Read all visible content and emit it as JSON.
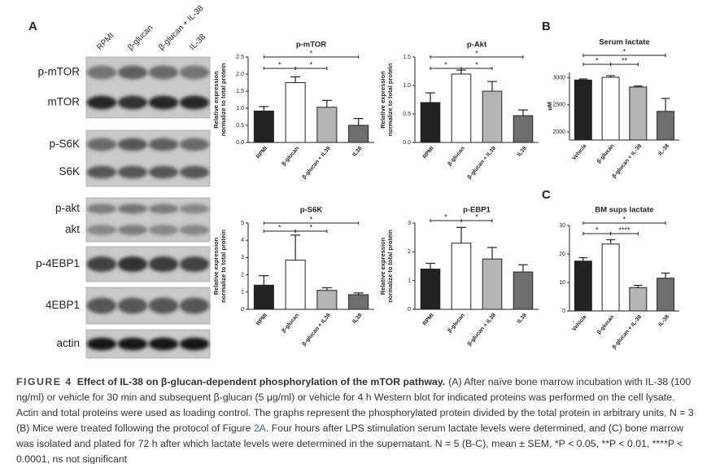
{
  "panel_labels": [
    "A",
    "B",
    "C"
  ],
  "blot": {
    "columns": [
      "RPMI",
      "β-glucan",
      "β-glucan + IL-38",
      "IL-38"
    ],
    "rows": [
      "p-mTOR",
      "mTOR",
      "p-S6K",
      "S6K",
      "p-akt",
      "akt",
      "p-4EBP1",
      "4EBP1",
      "actin"
    ]
  },
  "chart_data": [
    {
      "type": "bar",
      "title": "p-mTOR",
      "ylabel": [
        "Relative expression",
        "normalize to total protein"
      ],
      "categories": [
        "RPMI",
        "β-glucan",
        "β-glucan + IL38",
        "IL38"
      ],
      "values": [
        0.92,
        1.75,
        1.03,
        0.5
      ],
      "errors": [
        0.13,
        0.17,
        0.2,
        0.2
      ],
      "colors": [
        "#222222",
        "#ffffff",
        "#b4b4b4",
        "#6e6e6e"
      ],
      "ylim": [
        0,
        2.5
      ],
      "yticks": [
        {
          "value": 0,
          "label": "0.0"
        },
        0.5,
        {
          "value": 1,
          "label": "1.0"
        },
        1.5,
        {
          "value": 2,
          "label": "2.0"
        },
        2.5
      ],
      "annotations": [
        {
          "text": "*",
          "from": "RPMI",
          "to": "β-glucan"
        },
        {
          "text": "*",
          "from": "β-glucan",
          "to": "β-glucan + IL38"
        },
        {
          "text": "*",
          "from": "RPMI",
          "to": "IL38"
        }
      ]
    },
    {
      "type": "bar",
      "title": "p-Akt",
      "ylabel": [
        "Relative expression",
        "normalize to total protein"
      ],
      "categories": [
        "RPMI",
        "β-glucan",
        "β-glucan + IL38",
        "IL38"
      ],
      "values": [
        0.7,
        1.2,
        0.9,
        0.47
      ],
      "errors": [
        0.17,
        0.07,
        0.17,
        0.1
      ],
      "colors": [
        "#222222",
        "#ffffff",
        "#b4b4b4",
        "#6e6e6e"
      ],
      "ylim": [
        0,
        1.5
      ],
      "yticks": [
        {
          "value": 0,
          "label": "0.0"
        },
        0.5,
        {
          "value": 1,
          "label": "1.0"
        },
        1.5
      ],
      "annotations": [
        {
          "text": "*",
          "from": "RPMI",
          "to": "β-glucan"
        },
        {
          "text": "*",
          "from": "β-glucan",
          "to": "β-glucan + IL38"
        },
        {
          "text": "*",
          "from": "RPMI",
          "to": "IL38"
        }
      ]
    },
    {
      "type": "bar",
      "title": "p-S6K",
      "ylabel": [
        "Relative expression",
        "normalize to total protein"
      ],
      "categories": [
        "RPMI",
        "β-glucan",
        "β-glucan + IL38",
        "IL38"
      ],
      "values": [
        1.4,
        2.85,
        1.1,
        0.85
      ],
      "errors": [
        0.55,
        1.45,
        0.15,
        0.1
      ],
      "colors": [
        "#222222",
        "#ffffff",
        "#b4b4b4",
        "#6e6e6e"
      ],
      "ylim": [
        0,
        5
      ],
      "yticks": [
        0,
        1,
        2,
        3,
        4,
        5
      ],
      "annotations": [
        {
          "text": "*",
          "from": "RPMI",
          "to": "β-glucan"
        },
        {
          "text": "*",
          "from": "β-glucan",
          "to": "β-glucan + IL38"
        },
        {
          "text": "*",
          "from": "RPMI",
          "to": "IL38"
        }
      ]
    },
    {
      "type": "bar",
      "title": "p-EBP1",
      "ylabel": [
        "Relative expression",
        "normalize to total protein"
      ],
      "categories": [
        "RPMI",
        "β-glucan",
        "β-glucan + IL38",
        "IL38"
      ],
      "values": [
        1.4,
        2.3,
        1.75,
        1.3
      ],
      "errors": [
        0.2,
        0.55,
        0.4,
        0.25
      ],
      "colors": [
        "#222222",
        "#ffffff",
        "#b4b4b4",
        "#6e6e6e"
      ],
      "ylim": [
        0,
        3
      ],
      "yticks": [
        0,
        1,
        2,
        3
      ],
      "annotations": [
        {
          "text": "*",
          "from": "RPMI",
          "to": "β-glucan"
        },
        {
          "text": "*",
          "from": "β-glucan",
          "to": "β-glucan + IL38"
        }
      ]
    },
    {
      "type": "bar",
      "title": "Serum lactate",
      "ylabel": [
        "uM"
      ],
      "categories": [
        "Vehicle",
        "β-glucan",
        "β-glucan + IL-38",
        "IL-38"
      ],
      "values": [
        2960,
        3010,
        2830,
        2380
      ],
      "errors": [
        20,
        30,
        20,
        240
      ],
      "colors": [
        "#222222",
        "#ffffff",
        "#b4b4b4",
        "#6e6e6e"
      ],
      "ylim": [
        1850,
        3100
      ],
      "yticks": [
        2000,
        2500,
        3000
      ],
      "annotations": [
        {
          "text": "*",
          "from": "Vehicle",
          "to": "β-glucan"
        },
        {
          "text": "**",
          "from": "β-glucan",
          "to": "β-glucan + IL-38"
        },
        {
          "text": "*",
          "from": "Vehicle",
          "to": "IL-38"
        }
      ]
    },
    {
      "type": "bar",
      "title": "BM sups lactate",
      "ylabel": [],
      "categories": [
        "Vehicle",
        "β-glucan",
        "β-glucan + IL-38",
        "IL-38"
      ],
      "values": [
        17.5,
        23.5,
        8.2,
        11.5
      ],
      "errors": [
        1.2,
        1.5,
        0.8,
        1.8
      ],
      "colors": [
        "#222222",
        "#ffffff",
        "#b4b4b4",
        "#6e6e6e"
      ],
      "ylim": [
        0,
        30
      ],
      "yticks": [
        0,
        10,
        20,
        30
      ],
      "annotations": [
        {
          "text": "*",
          "from": "Vehicle",
          "to": "β-glucan"
        },
        {
          "text": "****",
          "from": "β-glucan",
          "to": "β-glucan + IL-38"
        },
        {
          "text": "*",
          "from": "Vehicle",
          "to": "IL-38"
        }
      ]
    }
  ],
  "caption": {
    "label": "FIGURE 4",
    "title": "Effect of IL-38 on β-glucan-dependent phosphorylation of the mTOR pathway.",
    "text": [
      "(A) After naïve bone marrow incubation with IL-38 (100 ng/ml) or vehicle for 30 min and subsequent β-glucan (5 μg/ml) or vehicle for 4 h Western blot for indicated proteins was performed on the cell lysate. Actin and total proteins were used as loading control. The graphs represent the phosphorylated protein divided by the total protein in arbitrary units, N = 3 (B) Mice were treated following the protocol of Figure ",
      "2A",
      ". Four hours after LPS stimulation serum lactate levels were determined, and (C) bone marrow was isolated and plated for 72 h after which lactate levels were determined in the supernatant. N = 5 (B-C), mean ± SEM, *P < 0.05, **P < 0.01, ****P < 0.0001, ns not significant"
    ]
  }
}
